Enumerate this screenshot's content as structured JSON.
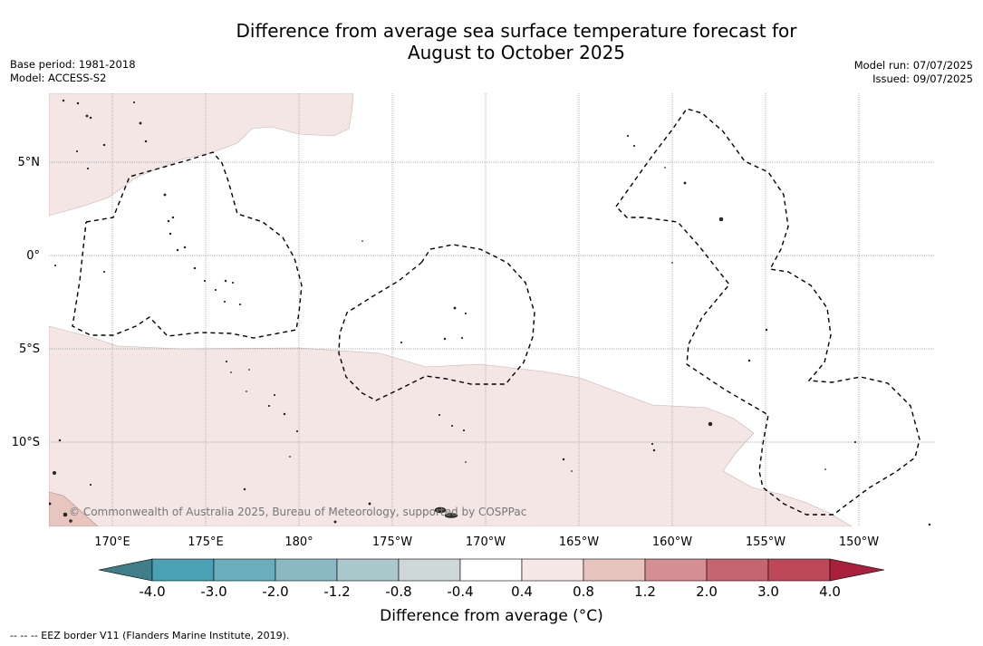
{
  "title": {
    "line1": "Difference from average sea surface temperature forecast for",
    "line2": "August to October 2025"
  },
  "meta": {
    "base_period": "Base period: 1981-2018",
    "model": "Model: ACCESS-S2",
    "model_run": "Model run: 07/07/2025",
    "issued": "Issued: 09/07/2025"
  },
  "map": {
    "lat_labels": [
      "5°N",
      "0°",
      "5°S",
      "10°S"
    ],
    "lon_labels": [
      "170°E",
      "175°E",
      "180°",
      "175°W",
      "170°W",
      "165°W",
      "160°W",
      "155°W",
      "150°W"
    ],
    "copyright": "© Commonwealth of Australia 2025, Bureau of Meteorology, supported by COSPPac",
    "colors": {
      "anomaly_light": "#f3e6e4",
      "anomaly_medium": "#e8c5be",
      "grid": "#999999",
      "eez": "#000000"
    }
  },
  "colorbar": {
    "label": "Difference from average (°C)",
    "ticks": [
      "-4.0",
      "-3.0",
      "-2.0",
      "-1.2",
      "-0.8",
      "-0.4",
      "0.4",
      "0.8",
      "1.2",
      "2.0",
      "3.0",
      "4.0"
    ],
    "colors": [
      "#3f7e88",
      "#4aa1b4",
      "#6aaebd",
      "#8ab9c4",
      "#abc9cc",
      "#cfd8d8",
      "#ffffff",
      "#f5e8e6",
      "#e7c5be",
      "#d58f94",
      "#c6646f",
      "#bd4858",
      "#a8203b"
    ]
  },
  "footer": "-- -- -- EEZ border V11 (Flanders Marine Institute, 2019)."
}
